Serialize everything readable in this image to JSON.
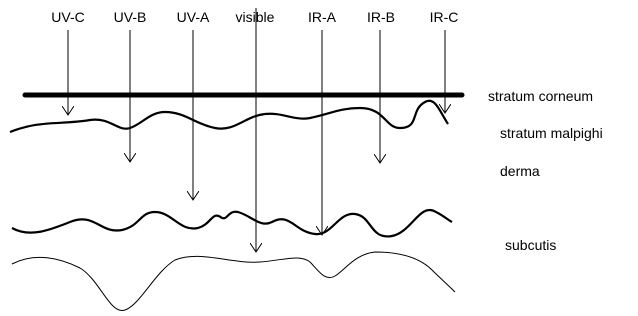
{
  "rays": [
    {
      "label": "UV-C"
    },
    {
      "label": "UV-B"
    },
    {
      "label": "UV-A"
    },
    {
      "label": "visible"
    },
    {
      "label": "IR-A"
    },
    {
      "label": "IR-B"
    },
    {
      "label": "IR-C"
    }
  ],
  "layers": [
    {
      "label": "stratum corneum"
    },
    {
      "label": "stratum malpighi"
    },
    {
      "label": "derma"
    },
    {
      "label": "subcutis"
    }
  ]
}
